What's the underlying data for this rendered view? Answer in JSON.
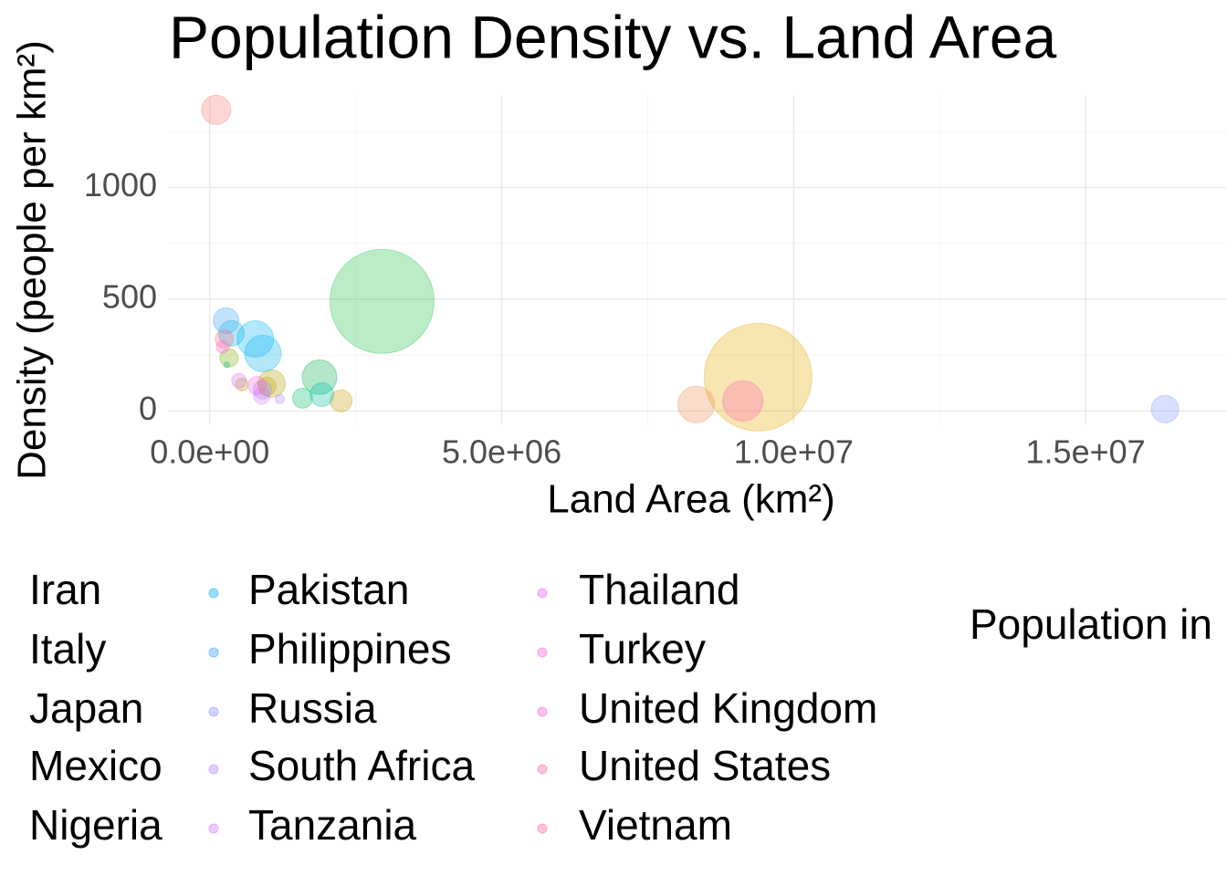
{
  "chart_data": {
    "type": "scatter",
    "title": "Population Density vs. Land Area",
    "x_label": "Land Area (km²)",
    "y_label": "Density (people per km²)",
    "size_legend_title": "Population in",
    "xlim": [
      -700000,
      17500000
    ],
    "ylim": [
      -60,
      1410
    ],
    "xticks": [
      {
        "value": 0,
        "label": "0.0e+00"
      },
      {
        "value": 5000000,
        "label": "5.0e+06"
      },
      {
        "value": 10000000,
        "label": "1.0e+07"
      },
      {
        "value": 15000000,
        "label": "1.5e+07"
      }
    ],
    "yticks": [
      0,
      500,
      1000
    ],
    "grid": true,
    "series": [
      {
        "name": null,
        "color": "#e6a800",
        "x": [
          9390000
        ],
        "values": [
          151
        ],
        "sizes": [
          1360
        ]
      },
      {
        "name": null,
        "color": "#1fbf4a",
        "x": [
          2950000
        ],
        "values": [
          490
        ],
        "sizes": [
          1270
        ]
      },
      {
        "name": null,
        "color": "#f08a50",
        "x": [
          8330000
        ],
        "values": [
          29
        ],
        "sizes": [
          156
        ]
      },
      {
        "name": null,
        "color": "#f8766d",
        "x": [
          110000
        ],
        "values": [
          1347
        ],
        "sizes": [
          100
        ]
      },
      {
        "name": null,
        "color": "#00b050",
        "x": [
          1880000
        ],
        "values": [
          151
        ],
        "sizes": [
          141
        ]
      },
      {
        "name": null,
        "color": "#c99800",
        "x": [
          2250000
        ],
        "values": [
          45
        ],
        "sizes": [
          56
        ]
      },
      {
        "name": null,
        "color": "#7cae00",
        "x": [
          330000
        ],
        "values": [
          237
        ],
        "sizes": [
          39
        ]
      },
      {
        "name": null,
        "color": "#a3a500",
        "x": [
          550000
        ],
        "values": [
          118
        ],
        "sizes": [
          19
        ]
      },
      {
        "name": null,
        "color": "#b0a000",
        "x": [
          1060000
        ],
        "values": [
          122
        ],
        "sizes": [
          88
        ]
      },
      {
        "name": null,
        "color": "#c6a000",
        "x": [
          980000
        ],
        "values": [
          110
        ],
        "sizes": [
          39
        ]
      },
      {
        "name": null,
        "color": "#9a8cff",
        "x": [
          900000
        ],
        "values": [
          94
        ],
        "sizes": [
          39
        ]
      },
      {
        "name": "Iran",
        "color": "#00be67",
        "x": [
          1590000
        ],
        "values": [
          57
        ],
        "sizes": [
          47
        ]
      },
      {
        "name": "Italy",
        "color": "#00c08b",
        "x": [
          290000
        ],
        "values": [
          206
        ],
        "sizes": [
          4
        ]
      },
      {
        "name": "Japan",
        "color": "#00bbda",
        "x": [
          370000
        ],
        "values": [
          347
        ],
        "sizes": [
          77
        ]
      },
      {
        "name": "Mexico",
        "color": "#00c1a9",
        "x": [
          1920000
        ],
        "values": [
          73
        ],
        "sizes": [
          66
        ]
      },
      {
        "name": "Nigeria",
        "color": "#00b4ef",
        "x": [
          910000
        ],
        "values": [
          257
        ],
        "sizes": [
          156
        ]
      },
      {
        "name": "Pakistan",
        "color": "#00b0f6",
        "x": [
          780000
        ],
        "values": [
          322
        ],
        "sizes": [
          156
        ]
      },
      {
        "name": "Philippines",
        "color": "#35a2ff",
        "x": [
          280000
        ],
        "values": [
          404
        ],
        "sizes": [
          77
        ]
      },
      {
        "name": "Russia",
        "color": "#7f96ff",
        "x": [
          16360000
        ],
        "values": [
          8
        ],
        "sizes": [
          88
        ]
      },
      {
        "name": "South Africa",
        "color": "#b385ff",
        "x": [
          1200000
        ],
        "values": [
          53
        ],
        "sizes": [
          10
        ]
      },
      {
        "name": "Tanzania",
        "color": "#d277ff",
        "x": [
          890000
        ],
        "values": [
          67
        ],
        "sizes": [
          32
        ]
      },
      {
        "name": "Thailand",
        "color": "#e76bf3",
        "x": [
          500000
        ],
        "values": [
          135
        ],
        "sizes": [
          25
        ]
      },
      {
        "name": "Turkey",
        "color": "#f564e3",
        "x": [
          810000
        ],
        "values": [
          114
        ],
        "sizes": [
          39
        ]
      },
      {
        "name": "United Kingdom",
        "color": "#fd61d1",
        "x": [
          220000
        ],
        "values": [
          286
        ],
        "sizes": [
          19
        ]
      },
      {
        "name": "United States",
        "color": "#ff64b0",
        "x": [
          9130000
        ],
        "values": [
          45
        ],
        "sizes": [
          190
        ]
      },
      {
        "name": "Vietnam",
        "color": "#ff6c91",
        "x": [
          250000
        ],
        "values": [
          322
        ],
        "sizes": [
          39
        ]
      }
    ]
  }
}
